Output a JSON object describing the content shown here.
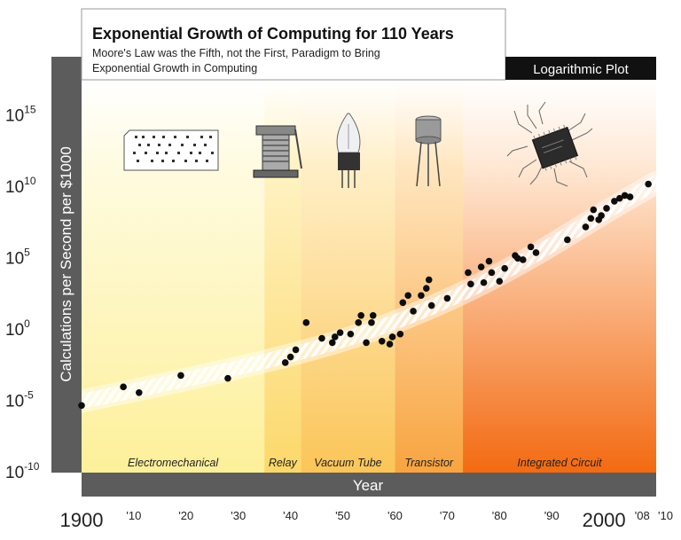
{
  "chart_data": {
    "type": "scatter",
    "title": "Exponential Growth of Computing for 110 Years",
    "subtitle_lines": [
      "Moore's Law was the Fifth, not the First, Paradigm to Bring",
      "Exponential Growth in Computing"
    ],
    "badge": "Logarithmic Plot",
    "xlabel": "Year",
    "ylabel": "Calculations per Second per $1000",
    "xlim": [
      1900,
      2010
    ],
    "ylim_log10": [
      -10,
      17.5
    ],
    "x_ticks": [
      {
        "value": 1900,
        "label": "1900",
        "big": true
      },
      {
        "value": 1910,
        "label": "'10",
        "big": false
      },
      {
        "value": 1920,
        "label": "'20",
        "big": false
      },
      {
        "value": 1930,
        "label": "'30",
        "big": false
      },
      {
        "value": 1940,
        "label": "'40",
        "big": false
      },
      {
        "value": 1950,
        "label": "'50",
        "big": false
      },
      {
        "value": 1960,
        "label": "'60",
        "big": false
      },
      {
        "value": 1970,
        "label": "'70",
        "big": false
      },
      {
        "value": 1980,
        "label": "'80",
        "big": false
      },
      {
        "value": 1990,
        "label": "'90",
        "big": false
      },
      {
        "value": 2000,
        "label": "2000",
        "big": true
      },
      {
        "value": 2008,
        "label": "'08",
        "big": false
      },
      {
        "value": 2010,
        "label": "'10",
        "big": false
      }
    ],
    "y_ticks": [
      {
        "exp": 15,
        "base": "10",
        "sup": "15"
      },
      {
        "exp": 10,
        "base": "10",
        "sup": "10"
      },
      {
        "exp": 5,
        "base": "10",
        "sup": "5"
      },
      {
        "exp": 0,
        "base": "10",
        "sup": "0"
      },
      {
        "exp": -5,
        "base": "10",
        "sup": "-5"
      },
      {
        "exp": -10,
        "base": "10",
        "sup": "-10"
      }
    ],
    "eras": [
      {
        "name": "Electromechanical",
        "start": 1900,
        "end": 1935,
        "color_top": "#fffbe0",
        "color_bottom": "#fdf09a"
      },
      {
        "name": "Relay",
        "start": 1935,
        "end": 1942,
        "color_top": "#fff3c4",
        "color_bottom": "#fcd86a"
      },
      {
        "name": "Vacuum Tube",
        "start": 1942,
        "end": 1960,
        "color_top": "#ffefc8",
        "color_bottom": "#fbc558"
      },
      {
        "name": "Transistor",
        "start": 1960,
        "end": 1973,
        "color_top": "#ffe6c0",
        "color_bottom": "#f8a440"
      },
      {
        "name": "Integrated Circuit",
        "start": 1973,
        "end": 2010,
        "color_top": "#ffe8d4",
        "color_bottom": "#f36a12"
      }
    ],
    "trend": {
      "x": [
        1900,
        1920,
        1940,
        1955,
        1970,
        1985,
        2000,
        2010
      ],
      "log10": [
        -5,
        -3.5,
        -1.8,
        -0.2,
        2,
        4.8,
        8.2,
        10.3
      ]
    },
    "points": [
      {
        "x": 1900,
        "log10": -5.3
      },
      {
        "x": 1908,
        "log10": -4.0
      },
      {
        "x": 1911,
        "log10": -4.4
      },
      {
        "x": 1919,
        "log10": -3.2
      },
      {
        "x": 1928,
        "log10": -3.4
      },
      {
        "x": 1939,
        "log10": -2.3
      },
      {
        "x": 1940,
        "log10": -1.9
      },
      {
        "x": 1941,
        "log10": -1.4
      },
      {
        "x": 1943,
        "log10": 0.5
      },
      {
        "x": 1946,
        "log10": -0.6
      },
      {
        "x": 1948,
        "log10": -0.9
      },
      {
        "x": 1948.5,
        "log10": -0.5
      },
      {
        "x": 1949.5,
        "log10": -0.2
      },
      {
        "x": 1951.5,
        "log10": -0.3
      },
      {
        "x": 1953,
        "log10": 0.5
      },
      {
        "x": 1953.5,
        "log10": 1.0
      },
      {
        "x": 1954.5,
        "log10": -0.9
      },
      {
        "x": 1955.5,
        "log10": 0.5
      },
      {
        "x": 1955.8,
        "log10": 1.0
      },
      {
        "x": 1957.5,
        "log10": -0.8
      },
      {
        "x": 1959,
        "log10": -1.0
      },
      {
        "x": 1959.5,
        "log10": -0.5
      },
      {
        "x": 1961,
        "log10": -0.3
      },
      {
        "x": 1961.5,
        "log10": 1.9
      },
      {
        "x": 1962.5,
        "log10": 2.4
      },
      {
        "x": 1963.5,
        "log10": 1.3
      },
      {
        "x": 1965,
        "log10": 2.4
      },
      {
        "x": 1966,
        "log10": 2.9
      },
      {
        "x": 1966.5,
        "log10": 3.5
      },
      {
        "x": 1967,
        "log10": 1.7
      },
      {
        "x": 1970,
        "log10": 2.2
      },
      {
        "x": 1974,
        "log10": 4.0
      },
      {
        "x": 1974.5,
        "log10": 3.2
      },
      {
        "x": 1976.5,
        "log10": 4.4
      },
      {
        "x": 1977,
        "log10": 3.3
      },
      {
        "x": 1978,
        "log10": 4.8
      },
      {
        "x": 1978.5,
        "log10": 4.0
      },
      {
        "x": 1980,
        "log10": 3.4
      },
      {
        "x": 1981,
        "log10": 4.3
      },
      {
        "x": 1983,
        "log10": 5.2
      },
      {
        "x": 1983.5,
        "log10": 5.0
      },
      {
        "x": 1984.5,
        "log10": 4.9
      },
      {
        "x": 1986,
        "log10": 5.8
      },
      {
        "x": 1987,
        "log10": 5.4
      },
      {
        "x": 1993,
        "log10": 6.3
      },
      {
        "x": 1996.5,
        "log10": 7.2
      },
      {
        "x": 1997.5,
        "log10": 7.8
      },
      {
        "x": 1998,
        "log10": 8.4
      },
      {
        "x": 1999,
        "log10": 7.7
      },
      {
        "x": 1999.5,
        "log10": 8.0
      },
      {
        "x": 2000.5,
        "log10": 8.5
      },
      {
        "x": 2002,
        "log10": 9.0
      },
      {
        "x": 2003,
        "log10": 9.2
      },
      {
        "x": 2004,
        "log10": 9.4
      },
      {
        "x": 2005,
        "log10": 9.3
      },
      {
        "x": 2008.5,
        "log10": 10.2
      }
    ],
    "colors": {
      "axis_band": "#5c5c5c",
      "badge_bg": "#111111",
      "point": "#0d0d0d",
      "trend": "#ffffff"
    },
    "icons": [
      "punch-card-icon",
      "relay-icon",
      "vacuum-tube-icon",
      "transistor-icon",
      "integrated-circuit-icon"
    ]
  }
}
